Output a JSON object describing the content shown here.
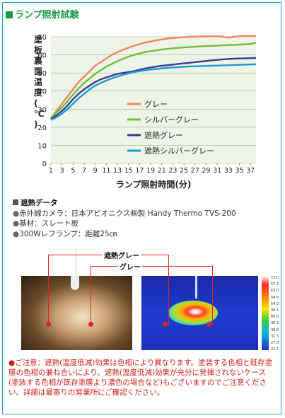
{
  "section_title": "ランプ照射試験",
  "chart_data": {
    "type": "line",
    "ylabel": "塗板裏面温度(℃)",
    "xlabel": "ランプ照射時間(分)",
    "ylim": [
      0,
      70
    ],
    "y_ticks": [
      "0",
      "10",
      "20",
      "30",
      "40",
      "50",
      "60",
      "70"
    ],
    "x_ticks": [
      "1",
      "3",
      "5",
      "7",
      "9",
      "11",
      "13",
      "15",
      "17",
      "19",
      "21",
      "23",
      "25",
      "27",
      "29",
      "31",
      "33",
      "35",
      "37"
    ],
    "x": [
      1,
      2,
      3,
      4,
      5,
      6,
      7,
      8,
      9,
      10,
      11,
      12,
      13,
      14,
      15,
      16,
      17,
      18,
      19,
      20,
      21,
      22,
      23,
      24,
      25,
      26,
      27,
      28,
      29,
      30,
      31,
      32,
      33,
      34,
      35,
      36,
      37,
      38
    ],
    "grid": "horizontal",
    "legend_position": "right",
    "series": [
      {
        "name": "グレー",
        "color": "#f0875a",
        "values": [
          25,
          29,
          33,
          37,
          41,
          45,
          48,
          51,
          54,
          56,
          58,
          60,
          61.5,
          62.8,
          64,
          65,
          66,
          66.8,
          67.4,
          68,
          68.5,
          69,
          69.3,
          69.6,
          69.8,
          70,
          70.1,
          70.2,
          70.2,
          70.2,
          70.3,
          70.1,
          69.5,
          70,
          70.3,
          70.5,
          70.4,
          70.5
        ]
      },
      {
        "name": "シルバーグレー",
        "color": "#6cbf3c",
        "values": [
          25,
          28,
          31,
          34.5,
          38,
          41.5,
          44.5,
          47,
          49.5,
          51.5,
          53.5,
          55,
          56.5,
          57.8,
          59,
          60,
          60.8,
          61.5,
          62,
          62.5,
          63,
          63.3,
          63.6,
          63.9,
          64.1,
          64.3,
          64.5,
          64.7,
          64.9,
          65,
          65.1,
          65.3,
          65.4,
          65.5,
          65.7,
          65.8,
          66,
          66.8
        ]
      },
      {
        "name": "遮熱グレー",
        "color": "#3b3a8f",
        "values": [
          24.5,
          26.5,
          29,
          32,
          35.5,
          38.5,
          41,
          43,
          45,
          46.5,
          47.5,
          48.5,
          49.5,
          50,
          50.5,
          51,
          51.8,
          52.5,
          53,
          53.5,
          54,
          54.3,
          54.6,
          55,
          55.3,
          55.6,
          56,
          56.3,
          56.6,
          57,
          57.2,
          57.5,
          57.7,
          57.9,
          58,
          58.1,
          58.2,
          58.3
        ]
      },
      {
        "name": "遮熱シルバーグレー",
        "color": "#1b9ad8",
        "values": [
          24,
          25.5,
          27.5,
          30,
          33,
          36,
          38.5,
          41,
          43,
          44.5,
          45.8,
          47,
          48,
          49,
          49.8,
          50.5,
          51,
          51.5,
          51.9,
          52.2,
          52.5,
          52.8,
          53,
          53.2,
          53.4,
          53.6,
          53.7,
          53.8,
          53.9,
          54,
          54.1,
          54.2,
          54.3,
          54.4,
          54.5,
          54.6,
          54.7,
          54.8
        ]
      }
    ]
  },
  "info": {
    "title": "遮熱データ",
    "lines": [
      {
        "bullet": "●",
        "text": "赤外線カメラ：日本アビオニクス㈱製 Handy Thermo TVS-200"
      },
      {
        "bullet": "●",
        "text": "基材：スレート板"
      },
      {
        "bullet": "●",
        "text": "300Wレフランプ：距離25㎝"
      }
    ]
  },
  "thermo": {
    "label_heat": "遮熱グレー",
    "label_gray": "グレー",
    "scale_labels": [
      "72.0",
      "67.5",
      "63.0",
      "58.6",
      "54.0",
      "49.5",
      "45.0",
      "40.5",
      "36.0",
      "31.5",
      "27.0",
      "22.5"
    ]
  },
  "notice": "●ご注意：遮熱(温度低減)効果は色相により異なります。塗装する色相と既存塗膜の色相の兼ね合いにより、遮熱(温度低減)効果が充分に発揮されないケース(塗装する色相が既存塗膜より濃色の場合など)もございますのでご注意ください。詳細は最寄りの営業所にご確認ください。"
}
